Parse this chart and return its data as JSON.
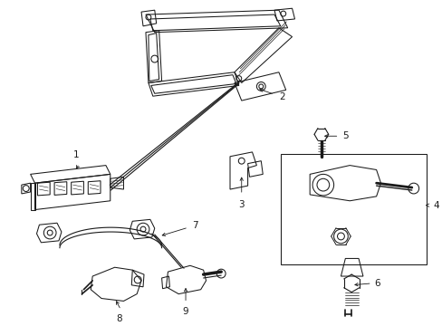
{
  "background_color": "#ffffff",
  "line_color": "#1a1a1a",
  "fig_width": 4.89,
  "fig_height": 3.6,
  "dpi": 100,
  "label_fs": 7.5,
  "lw": 0.75
}
